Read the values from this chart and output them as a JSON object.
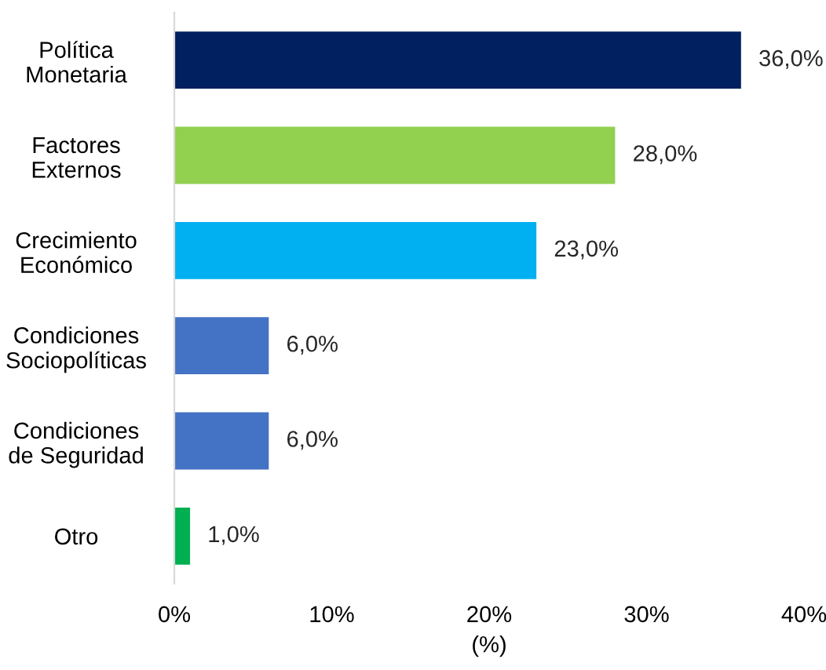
{
  "chart_data": {
    "type": "bar",
    "orientation": "horizontal",
    "xlabel": "(%)",
    "categories": [
      "Política\nMonetaria",
      "Factores\nExternos",
      "Crecimiento\nEconómico",
      "Condiciones\nSociopolíticas",
      "Condiciones\nde Seguridad",
      "Otro"
    ],
    "values": [
      36,
      28,
      23,
      6,
      6,
      1
    ],
    "colors": [
      "#002060",
      "#92d050",
      "#00b0f0",
      "#4472c4",
      "#4472c4",
      "#00b050"
    ],
    "value_labels": [
      "36,0%",
      "28,0%",
      "23,0%",
      "6,0%",
      "6,0%",
      "1,0%"
    ],
    "xlim": [
      0,
      40
    ],
    "xticks": [
      {
        "value": 0,
        "label": "0%"
      },
      {
        "value": 10,
        "label": "10%"
      },
      {
        "value": 20,
        "label": "20%"
      },
      {
        "value": 30,
        "label": "30%"
      },
      {
        "value": 40,
        "label": "40%"
      }
    ],
    "grid": false,
    "legend": false
  }
}
